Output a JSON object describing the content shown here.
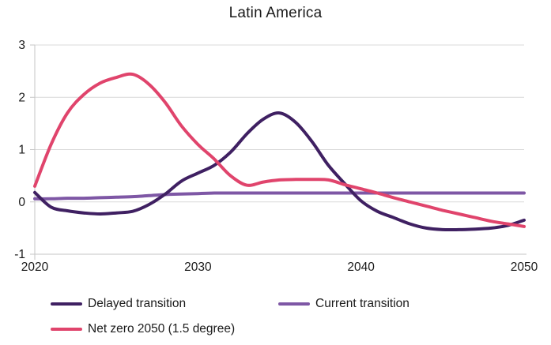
{
  "title": "Latin America",
  "legend": {
    "items": [
      {
        "label": "Delayed transition",
        "color": "#3F2062"
      },
      {
        "label": "Current transition",
        "color": "#7E57A5"
      },
      {
        "label": "Net zero 2050 (1.5 degree)",
        "color": "#E0446C"
      }
    ]
  },
  "colors": {
    "grid": "#D9D9D9",
    "axis": "#C6C6C6",
    "tick_text": "#1a1a1a"
  },
  "chart_data": {
    "type": "line",
    "title": "Latin America",
    "x": [
      2020,
      2021,
      2022,
      2023,
      2024,
      2025,
      2026,
      2027,
      2028,
      2029,
      2030,
      2031,
      2032,
      2033,
      2034,
      2035,
      2036,
      2037,
      2038,
      2039,
      2040,
      2041,
      2042,
      2043,
      2044,
      2045,
      2046,
      2047,
      2048,
      2049,
      2050
    ],
    "series": [
      {
        "name": "Delayed transition",
        "color": "#3F2062",
        "values": [
          0.18,
          -0.1,
          -0.17,
          -0.21,
          -0.23,
          -0.21,
          -0.18,
          -0.05,
          0.15,
          0.4,
          0.55,
          0.7,
          0.95,
          1.3,
          1.58,
          1.7,
          1.52,
          1.15,
          0.7,
          0.35,
          0.02,
          -0.18,
          -0.3,
          -0.42,
          -0.5,
          -0.53,
          -0.53,
          -0.52,
          -0.5,
          -0.45,
          -0.35
        ]
      },
      {
        "name": "Current transition",
        "color": "#7E57A5",
        "values": [
          0.06,
          0.06,
          0.07,
          0.07,
          0.08,
          0.09,
          0.1,
          0.12,
          0.14,
          0.15,
          0.16,
          0.17,
          0.17,
          0.17,
          0.17,
          0.17,
          0.17,
          0.17,
          0.17,
          0.17,
          0.17,
          0.17,
          0.17,
          0.17,
          0.17,
          0.17,
          0.17,
          0.17,
          0.17,
          0.17,
          0.17
        ]
      },
      {
        "name": "Net zero 2050 (1.5 degree)",
        "color": "#E0446C",
        "values": [
          0.3,
          1.1,
          1.7,
          2.05,
          2.27,
          2.38,
          2.44,
          2.25,
          1.9,
          1.45,
          1.1,
          0.82,
          0.5,
          0.32,
          0.38,
          0.42,
          0.43,
          0.43,
          0.42,
          0.33,
          0.25,
          0.17,
          0.08,
          0.0,
          -0.08,
          -0.16,
          -0.23,
          -0.3,
          -0.37,
          -0.42,
          -0.47
        ]
      }
    ],
    "xlim": [
      2020,
      2050
    ],
    "ylim": [
      -1,
      3
    ],
    "x_ticks": [
      2020,
      2030,
      2040,
      2050
    ],
    "y_ticks": [
      3,
      2,
      1,
      0,
      -1
    ],
    "grid": "horizontal",
    "legend_position": "bottom-left"
  }
}
